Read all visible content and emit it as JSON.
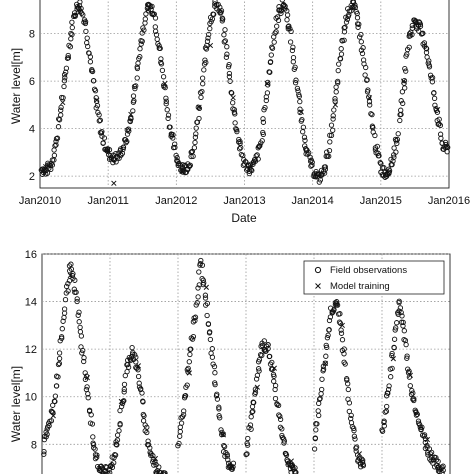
{
  "chart_data": [
    {
      "type": "scatter",
      "xlabel": "Date",
      "ylabel": "Water level[m]",
      "x_ticks": [
        "Jan2010",
        "Jan2011",
        "Jan2012",
        "Jan2013",
        "Jan2014",
        "Jan2015",
        "Jan2016"
      ],
      "y_ticks": [
        "2",
        "4",
        "6",
        "8"
      ],
      "xlim": [
        "2010-01",
        "2016-01"
      ],
      "ylim": [
        1.5,
        9.5
      ],
      "grid": true,
      "series": [
        {
          "marker": "circle",
          "points": [
            [
              "2010-01",
              2.3
            ],
            [
              "2010-02",
              2.2
            ],
            [
              "2010-03",
              2.5
            ],
            [
              "2010-04",
              3.6
            ],
            [
              "2010-05",
              5.4
            ],
            [
              "2010-06",
              7.3
            ],
            [
              "2010-07",
              8.8
            ],
            [
              "2010-08",
              9.3
            ],
            [
              "2010-09",
              8.4
            ],
            [
              "2010-10",
              6.6
            ],
            [
              "2010-11",
              4.9
            ],
            [
              "2010-12",
              3.6
            ],
            [
              "2011-01",
              3.0
            ],
            [
              "2011-02",
              2.7
            ],
            [
              "2011-03",
              2.9
            ],
            [
              "2011-04",
              3.4
            ],
            [
              "2011-05",
              4.4
            ],
            [
              "2011-06",
              6.2
            ],
            [
              "2011-07",
              7.9
            ],
            [
              "2011-08",
              9.2
            ],
            [
              "2011-09",
              9.0
            ],
            [
              "2011-10",
              7.4
            ],
            [
              "2011-11",
              5.6
            ],
            [
              "2011-12",
              3.9
            ],
            [
              "2012-01",
              2.8
            ],
            [
              "2012-02",
              2.3
            ],
            [
              "2012-03",
              2.4
            ],
            [
              "2012-04",
              3.0
            ],
            [
              "2012-05",
              4.7
            ],
            [
              "2012-06",
              6.8
            ],
            [
              "2012-07",
              8.5
            ],
            [
              "2012-08",
              9.4
            ],
            [
              "2012-09",
              8.7
            ],
            [
              "2012-10",
              7.0
            ],
            [
              "2012-11",
              5.0
            ],
            [
              "2012-12",
              3.5
            ],
            [
              "2013-01",
              2.5
            ],
            [
              "2013-02",
              2.3
            ],
            [
              "2013-03",
              2.6
            ],
            [
              "2013-04",
              3.5
            ],
            [
              "2013-05",
              5.6
            ],
            [
              "2013-06",
              7.6
            ],
            [
              "2013-07",
              8.9
            ],
            [
              "2013-08",
              9.3
            ],
            [
              "2013-09",
              8.1
            ],
            [
              "2013-10",
              6.2
            ],
            [
              "2013-11",
              4.4
            ],
            [
              "2013-12",
              3.0
            ],
            [
              "2014-01",
              2.3
            ],
            [
              "2014-02",
              1.9
            ],
            [
              "2014-03",
              2.2
            ],
            [
              "2014-04",
              3.3
            ],
            [
              "2014-05",
              5.2
            ],
            [
              "2014-06",
              7.2
            ],
            [
              "2014-07",
              8.7
            ],
            [
              "2014-08",
              9.3
            ],
            [
              "2014-09",
              8.6
            ],
            [
              "2014-10",
              6.9
            ],
            [
              "2014-11",
              5.0
            ],
            [
              "2014-12",
              3.4
            ],
            [
              "2015-01",
              2.3
            ],
            [
              "2015-02",
              2.1
            ],
            [
              "2015-03",
              2.6
            ],
            [
              "2015-04",
              3.7
            ],
            [
              "2015-05",
              5.7
            ],
            [
              "2015-06",
              7.8
            ],
            [
              "2015-07",
              8.6
            ],
            [
              "2015-08",
              8.2
            ],
            [
              "2015-09",
              7.4
            ],
            [
              "2015-10",
              6.0
            ],
            [
              "2015-11",
              4.5
            ],
            [
              "2015-12",
              3.2
            ]
          ]
        },
        {
          "marker": "x",
          "points": [
            [
              "2010-02",
              2.4
            ],
            [
              "2010-05",
              5.1
            ],
            [
              "2010-08",
              8.9
            ],
            [
              "2010-11",
              5.2
            ],
            [
              "2011-02",
              1.7
            ],
            [
              "2011-05",
              4.6
            ],
            [
              "2011-08",
              9.0
            ],
            [
              "2011-11",
              5.9
            ],
            [
              "2012-02",
              2.2
            ],
            [
              "2012-05",
              4.9
            ],
            [
              "2012-07",
              7.5
            ],
            [
              "2012-11",
              5.3
            ],
            [
              "2013-02",
              2.4
            ],
            [
              "2013-05",
              5.9
            ],
            [
              "2013-08",
              9.1
            ],
            [
              "2013-11",
              4.7
            ],
            [
              "2014-02",
              2.0
            ],
            [
              "2014-05",
              5.0
            ],
            [
              "2014-08",
              9.1
            ],
            [
              "2014-11",
              5.3
            ],
            [
              "2015-02",
              2.2
            ],
            [
              "2015-05",
              6.0
            ],
            [
              "2015-07",
              8.4
            ],
            [
              "2015-11",
              4.8
            ]
          ]
        }
      ]
    },
    {
      "type": "scatter",
      "ylabel": "Water level[m]",
      "y_ticks": [
        "8",
        "10",
        "12",
        "14",
        "16"
      ],
      "ylim": [
        6.5,
        16.0
      ],
      "grid": true,
      "legend": {
        "placement": "top-right",
        "entries": [
          {
            "marker": "circle",
            "label": "Field observations"
          },
          {
            "marker": "x",
            "label": "Model training"
          }
        ]
      },
      "series": [
        {
          "name": "Field observations",
          "marker": "circle",
          "points": [
            [
              "2010-01",
              7.5
            ],
            [
              "2010-02",
              8.6
            ],
            [
              "2010-03",
              9.6
            ],
            [
              "2010-04",
              11.4
            ],
            [
              "2010-05",
              13.6
            ],
            [
              "2010-06",
              15.5
            ],
            [
              "2010-07",
              14.3
            ],
            [
              "2010-08",
              12.2
            ],
            [
              "2010-09",
              10.3
            ],
            [
              "2010-10",
              8.2
            ],
            [
              "2010-11",
              7.0
            ],
            [
              "2010-12",
              6.8
            ],
            [
              "2011-01",
              6.9
            ],
            [
              "2011-02",
              7.8
            ],
            [
              "2011-03",
              9.4
            ],
            [
              "2011-04",
              11.2
            ],
            [
              "2011-05",
              12.0
            ],
            [
              "2011-06",
              10.9
            ],
            [
              "2011-07",
              9.2
            ],
            [
              "2011-08",
              7.8
            ],
            [
              "2011-09",
              7.0
            ],
            [
              "2011-10",
              6.8
            ],
            [
              "2012-01",
              7.8
            ],
            [
              "2012-02",
              9.6
            ],
            [
              "2012-03",
              11.6
            ],
            [
              "2012-04",
              13.3
            ],
            [
              "2012-05",
              15.7
            ],
            [
              "2012-06",
              14.0
            ],
            [
              "2012-07",
              11.8
            ],
            [
              "2012-08",
              9.8
            ],
            [
              "2012-09",
              8.0
            ],
            [
              "2012-10",
              7.0
            ],
            [
              "2013-01",
              7.6
            ],
            [
              "2013-02",
              9.2
            ],
            [
              "2013-03",
              10.9
            ],
            [
              "2013-04",
              12.2
            ],
            [
              "2013-05",
              12.0
            ],
            [
              "2013-06",
              10.6
            ],
            [
              "2013-07",
              9.0
            ],
            [
              "2013-08",
              7.6
            ],
            [
              "2013-09",
              6.9
            ],
            [
              "2014-01",
              8.0
            ],
            [
              "2014-02",
              9.8
            ],
            [
              "2014-03",
              11.8
            ],
            [
              "2014-04",
              13.6
            ],
            [
              "2014-05",
              14.0
            ],
            [
              "2014-06",
              12.4
            ],
            [
              "2014-07",
              10.2
            ],
            [
              "2014-08",
              8.4
            ],
            [
              "2014-09",
              7.2
            ],
            [
              "2015-01",
              8.4
            ],
            [
              "2015-02",
              10.0
            ],
            [
              "2015-03",
              12.0
            ],
            [
              "2015-04",
              14.0
            ],
            [
              "2015-05",
              12.6
            ],
            [
              "2015-06",
              10.4
            ],
            [
              "2015-07",
              9.4
            ],
            [
              "2015-08",
              8.6
            ],
            [
              "2015-09",
              7.8
            ],
            [
              "2015-10",
              7.4
            ],
            [
              "2015-11",
              7.0
            ]
          ]
        },
        {
          "name": "Model training",
          "marker": "x",
          "points": [
            [
              "2010-03",
              9.2
            ],
            [
              "2010-06",
              15.1
            ],
            [
              "2010-09",
              10.8
            ],
            [
              "2011-03",
              9.8
            ],
            [
              "2011-06",
              11.3
            ],
            [
              "2011-09",
              7.4
            ],
            [
              "2012-03",
              11.0
            ],
            [
              "2012-06",
              14.6
            ],
            [
              "2012-09",
              8.4
            ],
            [
              "2013-03",
              10.4
            ],
            [
              "2013-06",
              11.2
            ],
            [
              "2013-09",
              7.3
            ],
            [
              "2014-03",
              11.4
            ],
            [
              "2014-06",
              13.0
            ],
            [
              "2014-09",
              7.6
            ],
            [
              "2015-03",
              11.6
            ],
            [
              "2015-06",
              10.9
            ],
            [
              "2015-09",
              8.2
            ]
          ]
        }
      ]
    }
  ]
}
